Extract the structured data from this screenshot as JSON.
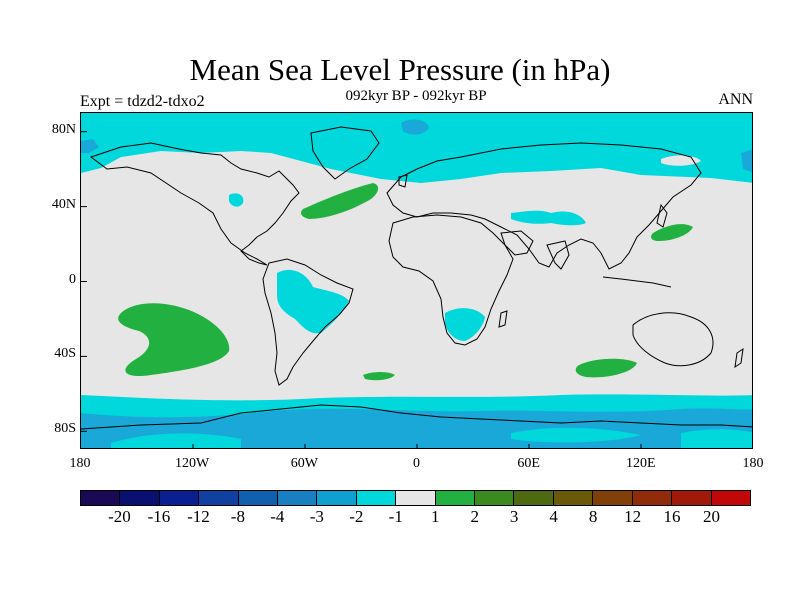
{
  "title": "Mean Sea Level Pressure (in hPa)",
  "left_label": "Expt = tdzd2-tdxo2",
  "center_label": "092kyr BP - 092kyr BP",
  "right_label": "ANN",
  "map": {
    "lon_range": [
      -180,
      180
    ],
    "lat_range": [
      -90,
      90
    ],
    "background_color": "#e6e6e6",
    "y_ticks": [
      {
        "label": "80N",
        "lat": 80
      },
      {
        "label": "40N",
        "lat": 40
      },
      {
        "label": "0",
        "lat": 0
      },
      {
        "label": "40S",
        "lat": -40
      },
      {
        "label": "80S",
        "lat": -80
      }
    ],
    "x_ticks": [
      {
        "label": "180",
        "lon": -180
      },
      {
        "label": "120W",
        "lon": -120
      },
      {
        "label": "60W",
        "lon": -60
      },
      {
        "label": "0",
        "lon": 0
      },
      {
        "label": "60E",
        "lon": 60
      },
      {
        "label": "120E",
        "lon": 120
      },
      {
        "label": "180",
        "lon": 180
      }
    ]
  },
  "colorbar": {
    "colors": [
      "#1a0a55",
      "#0a1070",
      "#0a2090",
      "#1040a0",
      "#1060b0",
      "#1880c0",
      "#10a0d0",
      "#00d8dc",
      "#e6e6e6",
      "#22b040",
      "#3a8a20",
      "#4e6a10",
      "#6a5a08",
      "#804008",
      "#902c0a",
      "#a01a0a",
      "#c00808"
    ],
    "labels": [
      "-20",
      "-16",
      "-12",
      "-8",
      "-4",
      "-3",
      "-2",
      "-1",
      "1",
      "2",
      "3",
      "4",
      "8",
      "12",
      "16",
      "20"
    ]
  }
}
